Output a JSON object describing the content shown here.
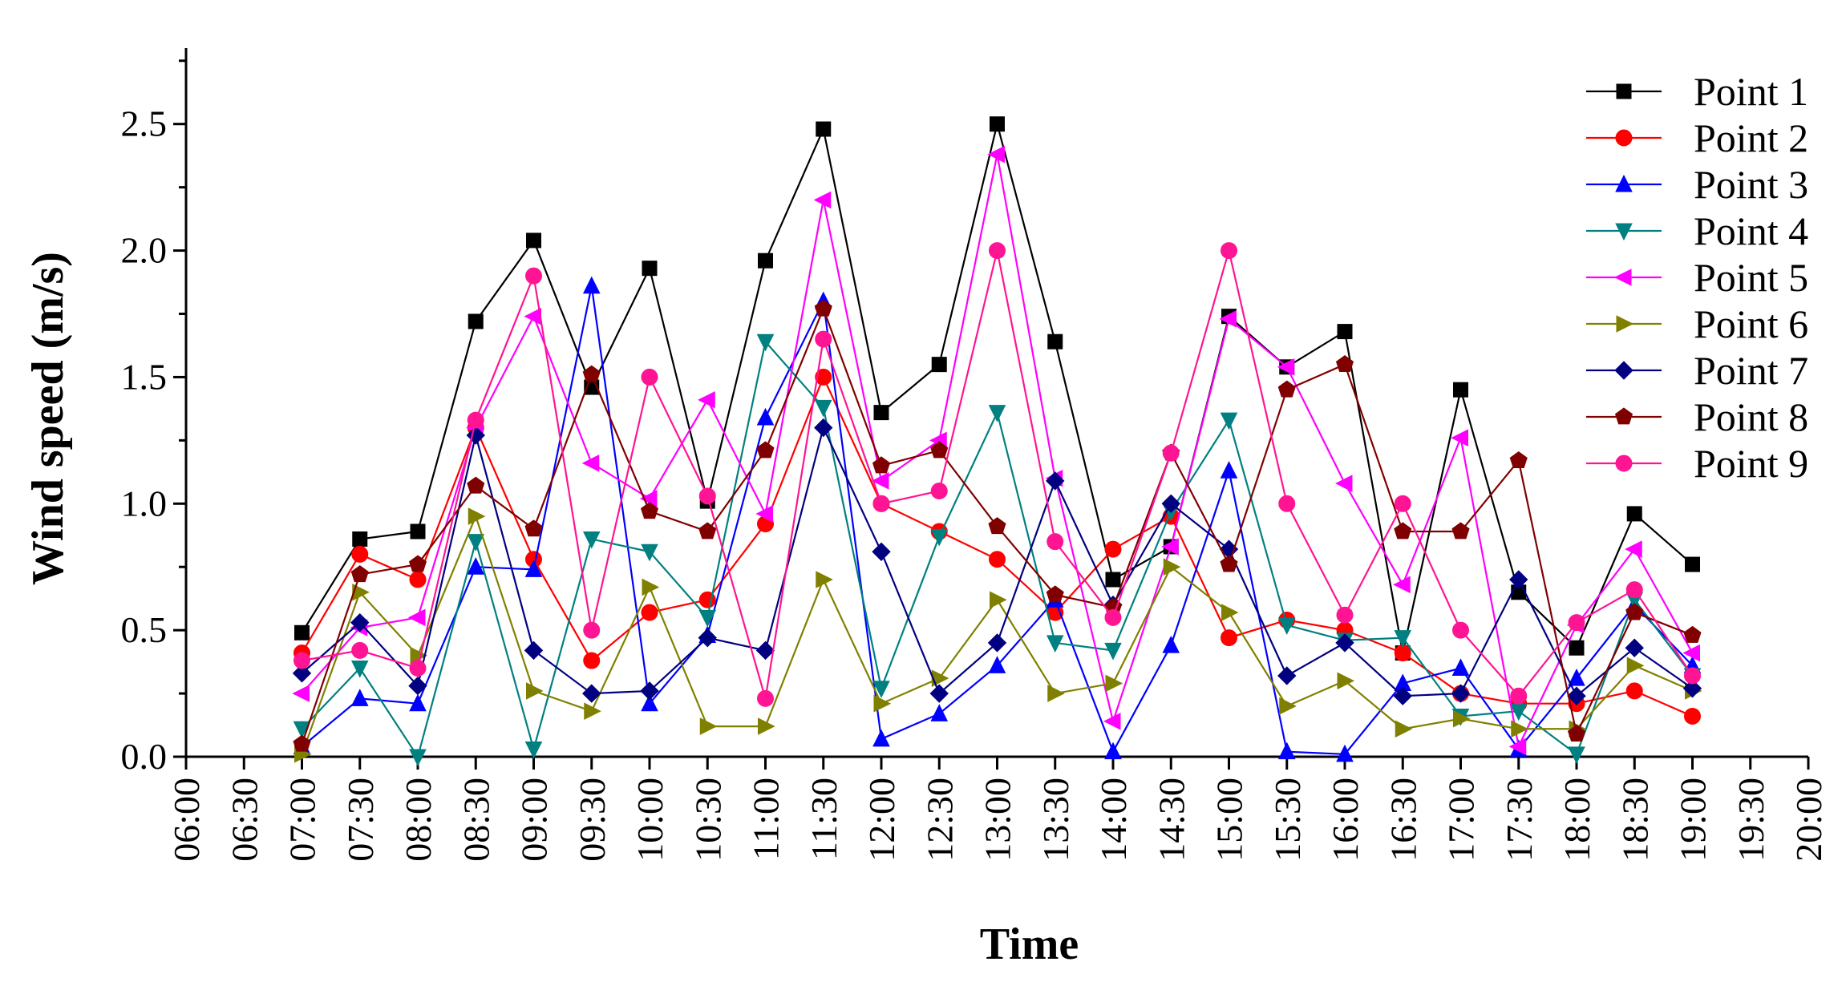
{
  "chart_data": {
    "type": "line",
    "title": "",
    "xlabel": "Time",
    "ylabel": "Wind speed (m/s)",
    "ylim": [
      0,
      2.8
    ],
    "y_ticks": [
      {
        "value": 0.0,
        "label": "0.0"
      },
      {
        "value": 0.5,
        "label": "0.5"
      },
      {
        "value": 1.0,
        "label": "1.0"
      },
      {
        "value": 1.5,
        "label": "1.5"
      },
      {
        "value": 2.0,
        "label": "2.0"
      },
      {
        "value": 2.5,
        "label": "2.5"
      }
    ],
    "x_ticks": [
      "06:00",
      "06:30",
      "07:00",
      "07:30",
      "08:00",
      "08:30",
      "09:00",
      "09:30",
      "10:00",
      "10:30",
      "11:00",
      "11:30",
      "12:00",
      "12:30",
      "13:00",
      "13:30",
      "14:00",
      "14:30",
      "15:00",
      "15:30",
      "16:00",
      "16:30",
      "17:00",
      "17:30",
      "18:00",
      "18:30",
      "19:00",
      "19:30",
      "20:00"
    ],
    "x": [
      "07:00",
      "07:30",
      "08:00",
      "08:30",
      "09:00",
      "09:30",
      "10:00",
      "10:30",
      "11:00",
      "11:30",
      "12:00",
      "12:30",
      "13:00",
      "13:30",
      "14:00",
      "14:30",
      "15:00",
      "15:30",
      "16:00",
      "16:30",
      "17:00",
      "17:30",
      "18:00",
      "18:30",
      "19:00"
    ],
    "legend_position": "top-right",
    "series": [
      {
        "name": "Point 1",
        "color": "#000000",
        "marker": "square",
        "values": [
          0.49,
          0.86,
          0.89,
          1.72,
          2.04,
          1.46,
          1.93,
          1.01,
          1.96,
          2.48,
          1.36,
          1.55,
          2.5,
          1.64,
          0.7,
          0.83,
          1.74,
          1.54,
          1.68,
          0.41,
          1.45,
          0.65,
          0.43,
          0.96,
          0.76
        ]
      },
      {
        "name": "Point 2",
        "color": "#ff0000",
        "marker": "circle",
        "values": [
          0.41,
          0.8,
          0.7,
          1.3,
          0.78,
          0.38,
          0.57,
          0.62,
          0.92,
          1.5,
          1.0,
          0.89,
          0.78,
          0.57,
          0.82,
          0.95,
          0.47,
          0.54,
          0.5,
          0.41,
          0.25,
          0.21,
          0.21,
          0.26,
          0.16
        ]
      },
      {
        "name": "Point 3",
        "color": "#0000ff",
        "marker": "triangle-up",
        "values": [
          0.04,
          0.23,
          0.21,
          0.75,
          0.74,
          1.86,
          0.21,
          0.48,
          1.34,
          1.8,
          0.07,
          0.17,
          0.36,
          0.62,
          0.02,
          0.44,
          1.13,
          0.02,
          0.01,
          0.29,
          0.35,
          0.03,
          0.31,
          0.6,
          0.36
        ]
      },
      {
        "name": "Point 4",
        "color": "#008080",
        "marker": "triangle-down",
        "values": [
          0.11,
          0.35,
          0.0,
          0.85,
          0.03,
          0.86,
          0.81,
          0.55,
          1.64,
          1.38,
          0.27,
          0.87,
          1.36,
          0.45,
          0.42,
          0.97,
          1.33,
          0.52,
          0.46,
          0.47,
          0.16,
          0.18,
          0.01,
          0.62,
          0.32
        ]
      },
      {
        "name": "Point 5",
        "color": "#ff00ff",
        "marker": "triangle-left",
        "values": [
          0.25,
          0.51,
          0.55,
          1.3,
          1.74,
          1.16,
          1.02,
          1.41,
          0.96,
          2.2,
          1.09,
          1.25,
          2.38,
          1.1,
          0.14,
          0.83,
          1.73,
          1.54,
          1.08,
          0.68,
          1.26,
          0.04,
          0.52,
          0.82,
          0.41
        ]
      },
      {
        "name": "Point 6",
        "color": "#808000",
        "marker": "triangle-right",
        "values": [
          0.01,
          0.65,
          0.4,
          0.95,
          0.26,
          0.18,
          0.67,
          0.12,
          0.12,
          0.7,
          0.21,
          0.31,
          0.62,
          0.25,
          0.29,
          0.75,
          0.57,
          0.2,
          0.3,
          0.11,
          0.15,
          0.11,
          0.11,
          0.36,
          0.26
        ]
      },
      {
        "name": "Point 7",
        "color": "#000080",
        "marker": "diamond",
        "values": [
          0.33,
          0.53,
          0.28,
          1.27,
          0.42,
          0.25,
          0.26,
          0.47,
          0.42,
          1.3,
          0.81,
          0.25,
          0.45,
          1.09,
          0.6,
          1.0,
          0.82,
          0.32,
          0.45,
          0.24,
          0.25,
          0.7,
          0.24,
          0.43,
          0.27
        ]
      },
      {
        "name": "Point 8",
        "color": "#800000",
        "marker": "pentagon",
        "values": [
          0.05,
          0.72,
          0.76,
          1.07,
          0.9,
          1.51,
          0.97,
          0.89,
          1.21,
          1.77,
          1.15,
          1.21,
          0.91,
          0.64,
          0.59,
          1.2,
          0.76,
          1.45,
          1.55,
          0.89,
          0.89,
          1.17,
          0.09,
          0.57,
          0.48
        ]
      },
      {
        "name": "Point 9",
        "color": "#ff1493",
        "marker": "circle",
        "values": [
          0.38,
          0.42,
          0.35,
          1.33,
          1.9,
          0.5,
          1.5,
          1.03,
          0.23,
          1.65,
          1.0,
          1.05,
          2.0,
          0.85,
          0.55,
          1.2,
          2.0,
          1.0,
          0.56,
          1.0,
          0.5,
          0.24,
          0.53,
          0.66,
          0.32
        ]
      }
    ]
  }
}
